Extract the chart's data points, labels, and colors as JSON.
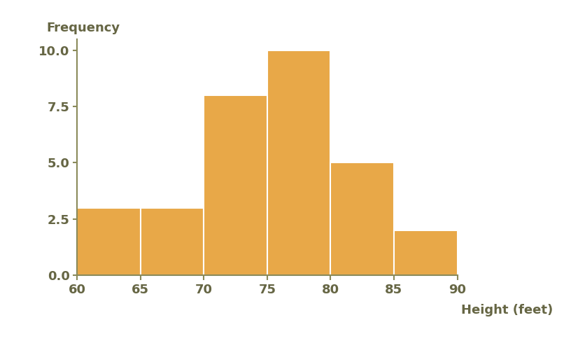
{
  "bin_edges": [
    60,
    65,
    70,
    75,
    80,
    85,
    90
  ],
  "frequencies": [
    3,
    3,
    8,
    10,
    5,
    2
  ],
  "bar_color": "#E8A848",
  "bar_edge_color": "#FFFFFF",
  "bar_linewidth": 1.5,
  "xlabel": "Height (feet)",
  "ylabel": "Frequency",
  "xlim": [
    60,
    90
  ],
  "ylim": [
    0,
    10.5
  ],
  "yticks": [
    0,
    2.5,
    5,
    7.5,
    10
  ],
  "xticks": [
    60,
    65,
    70,
    75,
    80,
    85,
    90
  ],
  "tick_label_color": "#666644",
  "axis_color": "#8a8a5a",
  "background_color": "#ffffff",
  "xlabel_fontsize": 13,
  "ylabel_fontsize": 13,
  "tick_fontsize": 13,
  "ylabel_fontweight": "bold",
  "xlabel_fontweight": "bold"
}
